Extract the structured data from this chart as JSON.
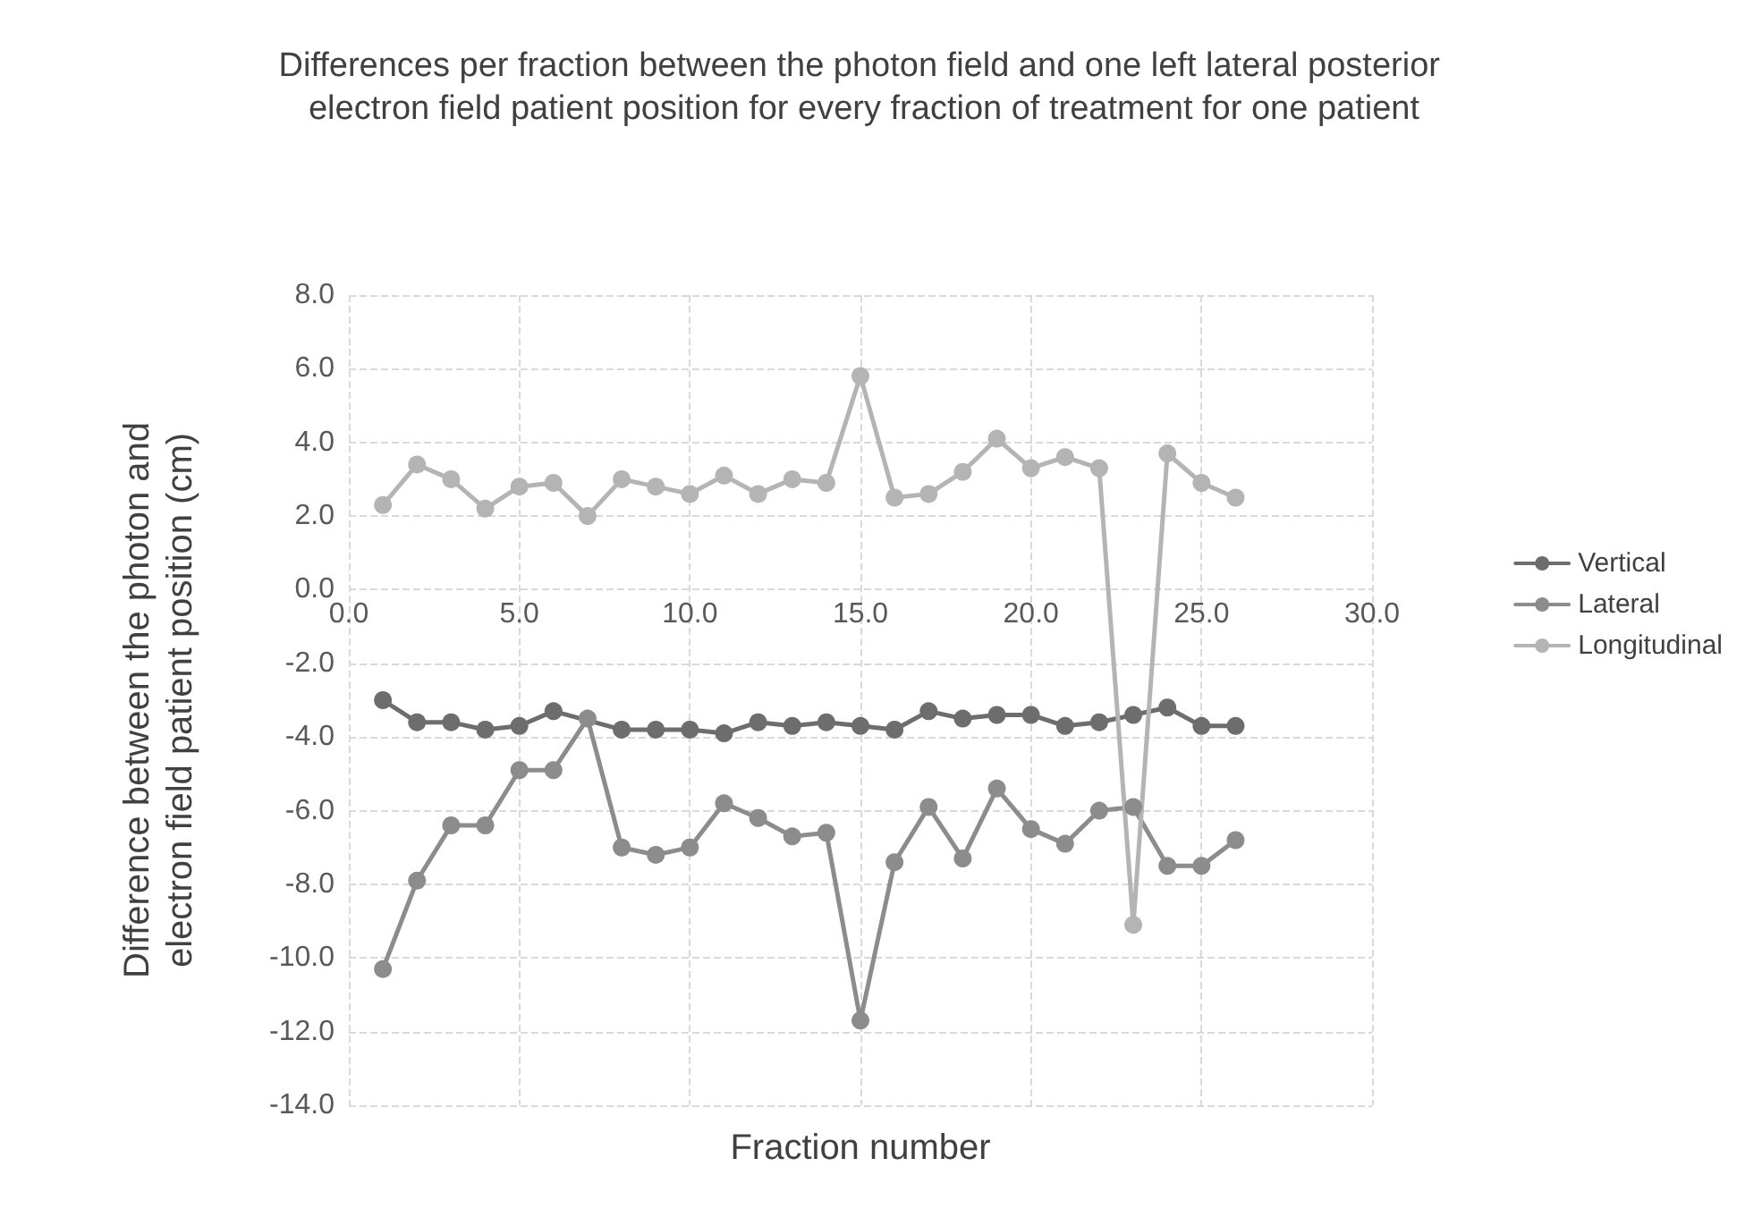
{
  "chart_data": {
    "type": "line",
    "title": "Differences per fraction between the photon field and one left lateral posterior electron field patient position for every fraction of treatment for one patient",
    "xlabel": "Fraction number",
    "ylabel": "Difference between the photon and electron field patient position (cm)",
    "x": [
      1,
      2,
      3,
      4,
      5,
      6,
      7,
      8,
      9,
      10,
      11,
      12,
      13,
      14,
      15,
      16,
      17,
      18,
      19,
      20,
      21,
      22,
      23,
      24,
      25,
      26
    ],
    "series": [
      {
        "name": "Vertical",
        "color": "#6d6d6d",
        "values": [
          -3.0,
          -3.6,
          -3.6,
          -3.8,
          -3.7,
          -3.3,
          null,
          -3.8,
          -3.8,
          -3.8,
          -3.9,
          -3.6,
          -3.7,
          -3.6,
          -3.7,
          -3.8,
          -3.3,
          -3.5,
          -3.4,
          -3.4,
          -3.7,
          -3.6,
          -3.4,
          -3.2,
          -3.7,
          -3.7
        ]
      },
      {
        "name": "Lateral",
        "color": "#8c8c8c",
        "values": [
          -10.3,
          -7.9,
          -6.4,
          -6.4,
          -4.9,
          -4.9,
          -3.5,
          -7.0,
          -7.2,
          -7.0,
          -5.8,
          -6.2,
          -6.7,
          -6.6,
          -11.7,
          -7.4,
          -5.9,
          -7.3,
          -5.4,
          -6.5,
          -6.9,
          -6.0,
          -5.9,
          -7.5,
          -7.5,
          -6.8
        ]
      },
      {
        "name": "Longitudinal",
        "color": "#b4b4b4",
        "values": [
          2.3,
          3.4,
          3.0,
          2.2,
          2.8,
          2.9,
          2.0,
          3.0,
          2.8,
          2.6,
          3.1,
          2.6,
          3.0,
          2.9,
          5.8,
          2.5,
          2.6,
          3.2,
          4.1,
          3.3,
          3.6,
          3.3,
          -9.1,
          3.7,
          2.9,
          2.5
        ]
      }
    ],
    "xlim": [
      0,
      30
    ],
    "xticks": [
      {
        "value": 0,
        "label": "0.0"
      },
      {
        "value": 5,
        "label": "5.0"
      },
      {
        "value": 10,
        "label": "10.0"
      },
      {
        "value": 15,
        "label": "15.0"
      },
      {
        "value": 20,
        "label": "20.0"
      },
      {
        "value": 25,
        "label": "25.0"
      },
      {
        "value": 30,
        "label": "30.0"
      }
    ],
    "ylim": [
      -14,
      8
    ],
    "yticks": [
      {
        "value": -14,
        "label": "-14.0"
      },
      {
        "value": -12,
        "label": "-12.0"
      },
      {
        "value": -10,
        "label": "-10.0"
      },
      {
        "value": -8,
        "label": "-8.0"
      },
      {
        "value": -6,
        "label": "-6.0"
      },
      {
        "value": -4,
        "label": "-4.0"
      },
      {
        "value": -2,
        "label": "-2.0"
      },
      {
        "value": 0,
        "label": "0.0"
      },
      {
        "value": 2,
        "label": "2.0"
      },
      {
        "value": 4,
        "label": "4.0"
      },
      {
        "value": 6,
        "label": "6.0"
      },
      {
        "value": 8,
        "label": "8.0"
      }
    ],
    "grid": true,
    "legend": "right",
    "marker": "circle",
    "line_style": "solid"
  }
}
